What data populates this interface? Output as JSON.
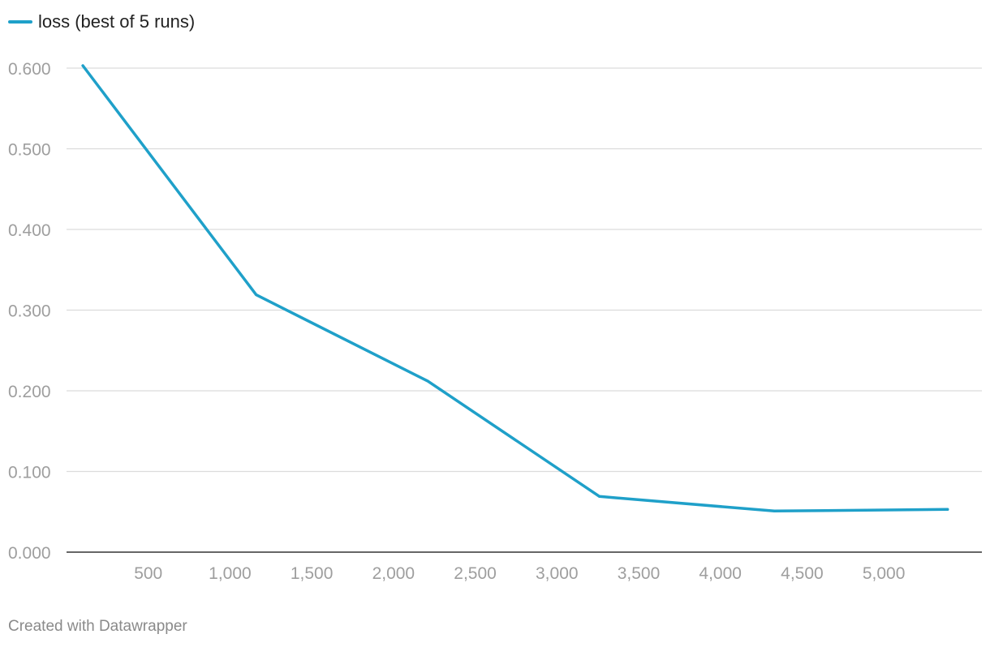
{
  "colors": {
    "series": "#1fa0c9",
    "grid": "#dcdcdc",
    "axis": "#333333",
    "tick_text": "#9e9e9e"
  },
  "footer": {
    "credit": "Created with Datawrapper"
  },
  "chart_data": {
    "type": "line",
    "title": "",
    "xlabel": "",
    "ylabel": "",
    "grid": true,
    "legend_position": "top-left",
    "xlim": [
      0,
      5600
    ],
    "ylim": [
      0,
      0.6
    ],
    "x_ticks": [
      500,
      1000,
      1500,
      2000,
      2500,
      3000,
      3500,
      4000,
      4500,
      5000
    ],
    "x_tick_labels": [
      "500",
      "1,000",
      "1,500",
      "2,000",
      "2,500",
      "3,000",
      "3,500",
      "4,000",
      "4,500",
      "5,000"
    ],
    "y_ticks": [
      0,
      0.1,
      0.2,
      0.3,
      0.4,
      0.5,
      0.6
    ],
    "y_tick_labels": [
      "0.000",
      "0.100",
      "0.200",
      "0.300",
      "0.400",
      "0.500",
      "0.600"
    ],
    "series": [
      {
        "name": "loss (best of 5 runs)",
        "x": [
          100,
          1160,
          2210,
          3260,
          4330,
          5390
        ],
        "y": [
          0.603,
          0.319,
          0.212,
          0.069,
          0.051,
          0.053
        ]
      }
    ]
  }
}
